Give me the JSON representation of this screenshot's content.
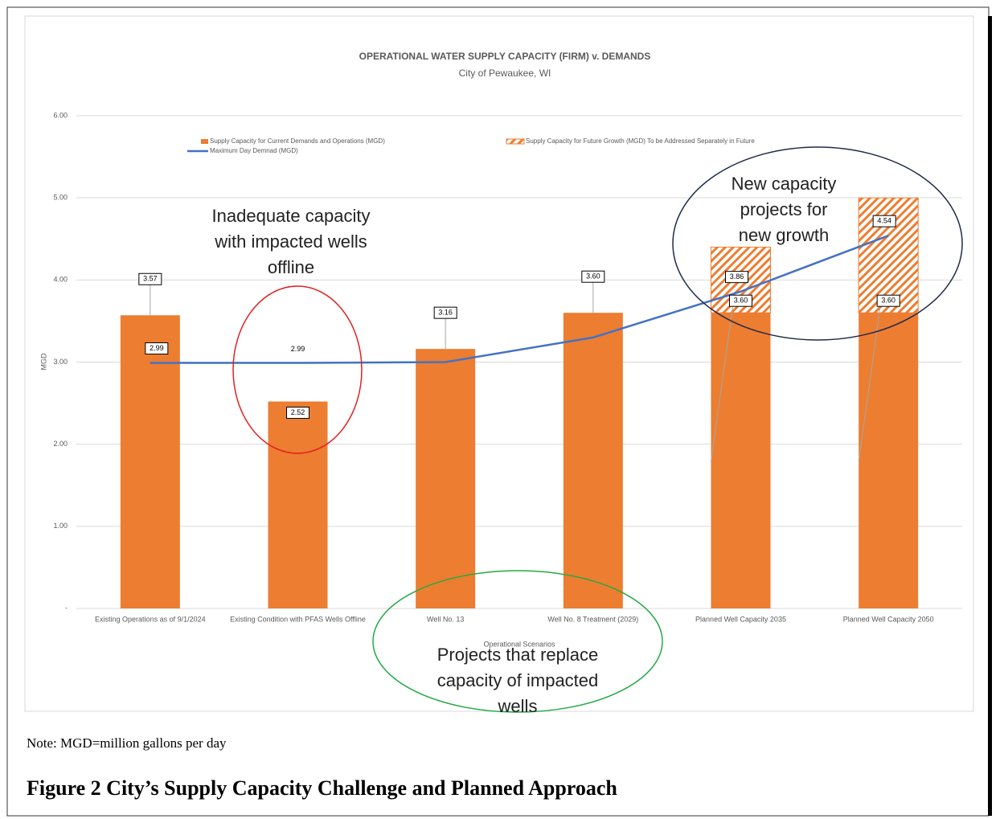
{
  "chart_data": {
    "type": "bar",
    "title": "OPERATIONAL WATER SUPPLY CAPACITY (FIRM) v. DEMANDS",
    "subtitle": "City of Pewaukee, WI",
    "y_label": "MGD",
    "x_label": "Operational Scenarios",
    "categories": [
      "Existing Operations as of 9/1/2024",
      "Existing Condition with PFAS Wells Offline",
      "Well No. 13",
      "Well No. 8 Treatment (2029)",
      "Planned Well Capacity 2035",
      "Planned Well Capacity 2050"
    ],
    "series": [
      {
        "name": "Supply Capacity for Current Demands and Operations (MGD)",
        "color": "#ed7d31",
        "kind": "bar",
        "values": [
          3.57,
          2.52,
          3.16,
          3.6,
          3.6,
          3.6
        ],
        "value_labels": [
          "3.57",
          "2.52",
          "3.16",
          "3.60",
          "3.60",
          "3.60"
        ]
      },
      {
        "name": "Supply Capacity for Future Growth (MGD) To be Addressed Separately in Future",
        "color": "#ed7d31",
        "kind": "hatched",
        "values": [
          null,
          null,
          null,
          null,
          0.8,
          1.4
        ]
      },
      {
        "name": "Maximum Day Demnad (MGD)",
        "color": "#4472c4",
        "kind": "line",
        "values": [
          2.99,
          2.99,
          3.0,
          3.3,
          3.86,
          4.54
        ],
        "value_labels": [
          "2.99",
          "2.99",
          null,
          null,
          "3.86",
          "4.54"
        ]
      }
    ],
    "ylim": [
      0,
      6
    ],
    "yticks": [
      {
        "value": 0,
        "label": "-"
      },
      {
        "value": 1,
        "label": "1.00"
      },
      {
        "value": 2,
        "label": "2.00"
      },
      {
        "value": 3,
        "label": "3.00"
      },
      {
        "value": 4,
        "label": "4.00"
      },
      {
        "value": 5,
        "label": "5.00"
      },
      {
        "value": 6,
        "label": "6.00"
      }
    ],
    "grid": true,
    "annotations": [
      {
        "lines": [
          "Inadequate capacity",
          "with impacted wells",
          "offline"
        ],
        "color": "#e02020"
      },
      {
        "lines": [
          "New capacity",
          "projects for",
          "new growth"
        ],
        "color": "#1f2a4a"
      },
      {
        "lines": [
          "Projects that replace",
          "capacity of impacted",
          "wells"
        ],
        "color": "#22aa44"
      }
    ]
  },
  "note": "Note: MGD=million gallons per day",
  "caption": "Figure 2  City’s Supply Capacity Challenge and Planned Approach"
}
